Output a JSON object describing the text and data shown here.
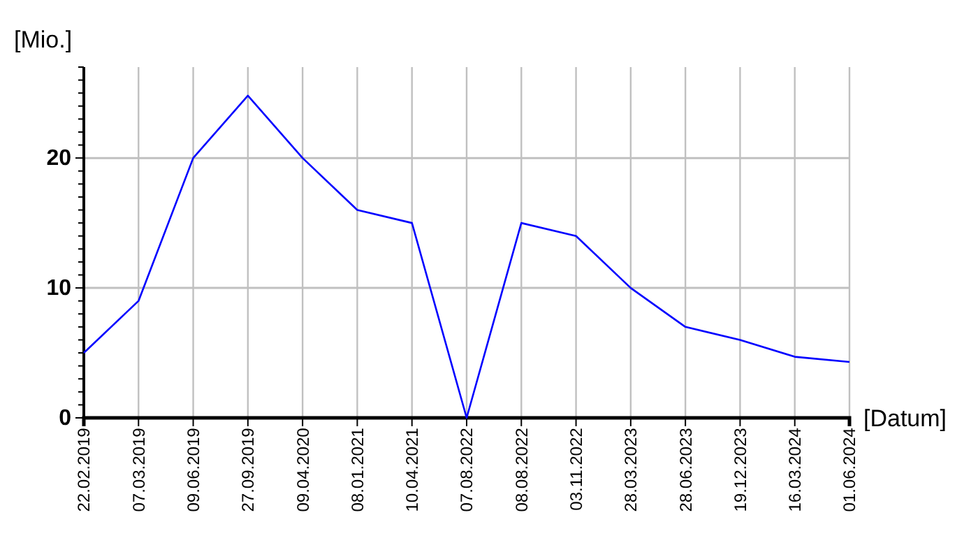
{
  "chart_data": {
    "type": "line",
    "ylabel": "[Mio.]",
    "xlabel": "[Datum]",
    "categories": [
      "22.02.2019",
      "07.03.2019",
      "09.06.2019",
      "27.09.2019",
      "09.04.2020",
      "08.01.2021",
      "10.04.2021",
      "07.08.2022",
      "08.08.2022",
      "03.11.2022",
      "28.03.2023",
      "28.06.2023",
      "19.12.2023",
      "16.03.2024",
      "01.06.2024"
    ],
    "series": [
      {
        "color": "#0000ff",
        "values": [
          5,
          9,
          20,
          24.8,
          20,
          16,
          15,
          0,
          15,
          14,
          10,
          7,
          6,
          4.7,
          4.3
        ]
      }
    ],
    "ylim": [
      0,
      27
    ],
    "yticks": [
      0,
      {
        "value": 1,
        "label": null
      },
      {
        "value": 2,
        "label": null
      },
      {
        "value": 3,
        "label": null
      },
      {
        "value": 4,
        "label": null
      },
      {
        "value": 5,
        "label": null
      },
      {
        "value": 6,
        "label": null
      },
      {
        "value": 7,
        "label": null
      },
      {
        "value": 8,
        "label": null
      },
      {
        "value": 9,
        "label": null
      },
      10,
      {
        "value": 11,
        "label": null
      },
      {
        "value": 12,
        "label": null
      },
      {
        "value": 13,
        "label": null
      },
      {
        "value": 14,
        "label": null
      },
      {
        "value": 15,
        "label": null
      },
      {
        "value": 16,
        "label": null
      },
      {
        "value": 17,
        "label": null
      },
      {
        "value": 18,
        "label": null
      },
      {
        "value": 19,
        "label": null
      },
      20,
      {
        "value": 21,
        "label": null
      },
      {
        "value": 22,
        "label": null
      },
      {
        "value": 23,
        "label": null
      },
      {
        "value": 24,
        "label": null
      },
      {
        "value": 25,
        "label": null
      },
      {
        "value": 26,
        "label": null
      },
      {
        "value": 27,
        "label": null
      }
    ],
    "grid": true,
    "marker": "none",
    "line_style": "solid"
  }
}
